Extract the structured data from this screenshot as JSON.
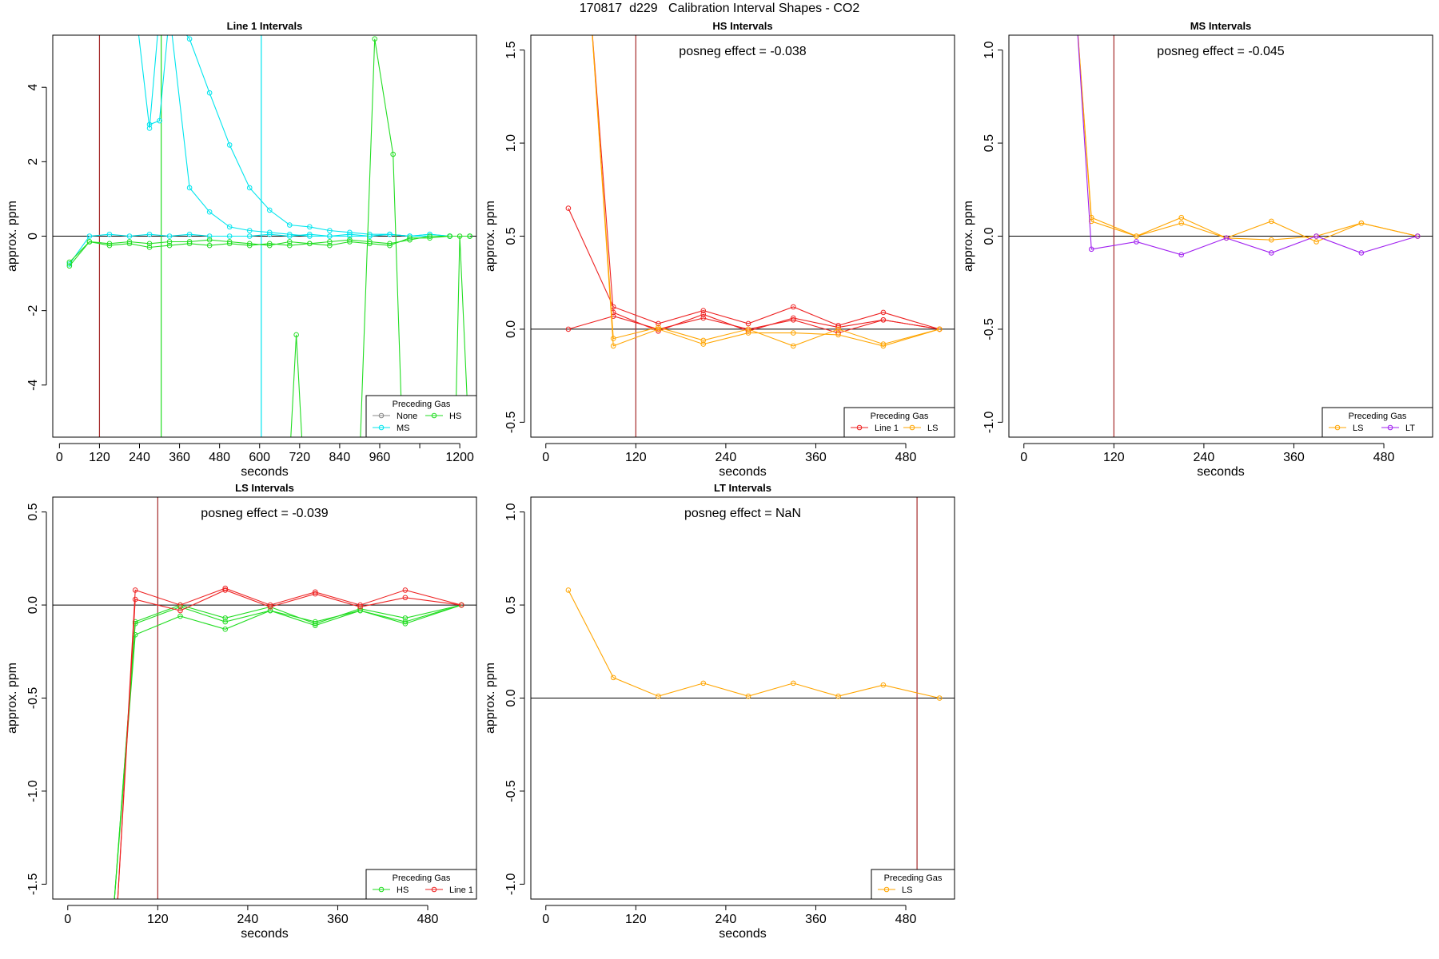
{
  "figure_title": "170817  d229   Calibration Interval Shapes - CO2",
  "ylabel": "approx. ppm",
  "xlabel": "seconds",
  "legend_title": "Preceding Gas",
  "colors": {
    "None": "#888888",
    "MS": "#00e5ee",
    "HS": "#22dd22",
    "Line 1": "#ee2222",
    "LS": "#ffa500",
    "LT": "#a020f0",
    "vline": "#a52a2a",
    "zero": "#000000"
  },
  "chart_data": [
    {
      "type": "line",
      "title": "Line 1 Intervals",
      "annotation": "",
      "xlabel": "seconds",
      "ylabel": "approx. ppm",
      "xlim": [
        -20,
        1250
      ],
      "ylim": [
        -5.4,
        5.4
      ],
      "xticks": [
        0,
        120,
        240,
        360,
        480,
        600,
        720,
        840,
        960,
        1080,
        1200
      ],
      "xtick_labels": [
        "0",
        "120",
        "240",
        "360",
        "480",
        "600",
        "720",
        "840",
        "960",
        "",
        "1200"
      ],
      "yticks": [
        -4,
        -2,
        0,
        2,
        4
      ],
      "vlines": [
        {
          "x": 120,
          "color": "#a52a2a"
        },
        {
          "x": 305,
          "color": "#22dd22"
        },
        {
          "x": 605,
          "color": "#00e5ee"
        }
      ],
      "legend": {
        "position": "bottom-right",
        "entries": [
          "None",
          "HS",
          "MS"
        ],
        "columns": 2
      },
      "series": [
        {
          "name": "MS",
          "color": "#00e5ee",
          "x": [
            30,
            90,
            150,
            210,
            270,
            330,
            390,
            450,
            510,
            570,
            630,
            690,
            750,
            810,
            870,
            930,
            990,
            1050,
            1110,
            1170,
            1230
          ],
          "y": [
            -0.75,
            0.0,
            0.05,
            0.0,
            0.05,
            0.0,
            0.05,
            0.0,
            0.0,
            0.0,
            0.05,
            0.0,
            0.05,
            0.0,
            0.05,
            0.0,
            0.05,
            0.0,
            0.05,
            0.0,
            0.0
          ]
        },
        {
          "name": "MS",
          "color": "#00e5ee",
          "x": [
            270,
            300,
            330,
            390,
            450,
            510,
            570,
            630,
            690,
            750,
            810,
            870,
            930,
            990,
            1050,
            1110,
            1170
          ],
          "y": [
            3.0,
            3.1,
            6.0,
            5.3,
            3.85,
            2.45,
            1.3,
            0.7,
            0.3,
            0.25,
            0.15,
            0.1,
            0.05,
            0.05,
            0.0,
            0.05,
            0.0
          ]
        },
        {
          "name": "MS",
          "color": "#00e5ee",
          "x": [
            230,
            270,
            300
          ],
          "y": [
            6.0,
            2.9,
            6.0
          ]
        },
        {
          "name": "MS",
          "color": "#00e5ee",
          "x": [
            330,
            390,
            450,
            510,
            570,
            630,
            690,
            750,
            810,
            870,
            930,
            990,
            1050,
            1110,
            1170
          ],
          "y": [
            6.0,
            1.3,
            0.65,
            0.25,
            0.15,
            0.1,
            0.05,
            0.0,
            0.0,
            0.0,
            0.0,
            0.05,
            0.0,
            0.0,
            0.0
          ]
        },
        {
          "name": "HS",
          "color": "#22dd22",
          "x": [
            30,
            90,
            150,
            210,
            270,
            330,
            390,
            450,
            510,
            570,
            630,
            690,
            750,
            810,
            870,
            930,
            990,
            1050,
            1110,
            1170,
            1230
          ],
          "y": [
            -0.7,
            -0.15,
            -0.25,
            -0.2,
            -0.3,
            -0.25,
            -0.2,
            -0.25,
            -0.2,
            -0.25,
            -0.2,
            -0.25,
            -0.2,
            -0.25,
            -0.15,
            -0.2,
            -0.25,
            -0.05,
            -0.05,
            0.0,
            0.0
          ]
        },
        {
          "name": "HS",
          "color": "#22dd22",
          "x": [
            30,
            90,
            150,
            210,
            270,
            330,
            390,
            450,
            510,
            570,
            630,
            690,
            750,
            810,
            870,
            930,
            990,
            1050,
            1110,
            1170,
            1230
          ],
          "y": [
            -0.8,
            -0.15,
            -0.2,
            -0.15,
            -0.2,
            -0.15,
            -0.15,
            -0.1,
            -0.15,
            -0.2,
            -0.25,
            -0.15,
            -0.2,
            -0.15,
            -0.1,
            -0.15,
            -0.2,
            -0.1,
            0.0,
            0.0,
            0.0
          ]
        },
        {
          "name": "HS",
          "color": "#22dd22",
          "x": [
            690,
            710,
            730
          ],
          "y": [
            -6.0,
            -2.65,
            -6.0
          ]
        },
        {
          "name": "HS",
          "color": "#22dd22",
          "x": [
            900,
            945,
            1000,
            1030
          ],
          "y": [
            -6.0,
            5.3,
            2.2,
            -6.0
          ]
        },
        {
          "name": "HS",
          "color": "#22dd22",
          "x": [
            1185,
            1200,
            1230
          ],
          "y": [
            -6.0,
            0.0,
            -6.0
          ]
        }
      ]
    },
    {
      "type": "line",
      "title": "HS Intervals",
      "annotation": "posneg effect = -0.038",
      "xlabel": "seconds",
      "ylabel": "approx. ppm",
      "xlim": [
        -20,
        545
      ],
      "ylim": [
        -0.58,
        1.58
      ],
      "xticks": [
        0,
        120,
        240,
        360,
        480
      ],
      "xtick_labels": [
        "0",
        "120",
        "240",
        "360",
        "480"
      ],
      "yticks": [
        -0.5,
        0.0,
        0.5,
        1.0,
        1.5
      ],
      "vlines": [
        {
          "x": 120,
          "color": "#a52a2a"
        }
      ],
      "legend": {
        "position": "bottom-right",
        "entries": [
          "Line 1",
          "LS"
        ],
        "columns": 2
      },
      "series": [
        {
          "name": "Line 1",
          "color": "#ee2222",
          "x": [
            30,
            90,
            150,
            210,
            270,
            330,
            390,
            450,
            525
          ],
          "y": [
            0.65,
            0.12,
            0.03,
            0.1,
            0.03,
            0.12,
            0.02,
            0.09,
            0.0
          ]
        },
        {
          "name": "Line 1",
          "color": "#ee2222",
          "x": [
            30,
            90,
            150,
            210,
            270,
            330,
            390,
            450,
            525
          ],
          "y": [
            0.0,
            0.07,
            0.0,
            0.06,
            0.0,
            0.05,
            -0.02,
            0.05,
            0.0
          ]
        },
        {
          "name": "Line 1",
          "color": "#ee2222",
          "x": [
            60,
            90,
            150,
            210,
            270,
            330,
            390,
            450,
            525
          ],
          "y": [
            1.7,
            0.09,
            -0.01,
            0.08,
            -0.01,
            0.06,
            0.01,
            0.05,
            0.0
          ]
        },
        {
          "name": "LS",
          "color": "#ffa500",
          "x": [
            60,
            90,
            150,
            210,
            270,
            330,
            390,
            450,
            525
          ],
          "y": [
            1.7,
            -0.05,
            0.01,
            -0.06,
            0.0,
            -0.09,
            0.0,
            -0.08,
            0.0
          ]
        },
        {
          "name": "LS",
          "color": "#ffa500",
          "x": [
            60,
            90,
            150,
            210,
            270,
            330,
            390,
            450,
            525
          ],
          "y": [
            1.7,
            -0.09,
            0.0,
            -0.08,
            -0.02,
            -0.02,
            -0.03,
            -0.09,
            0.0
          ]
        }
      ]
    },
    {
      "type": "line",
      "title": "MS Intervals",
      "annotation": "posneg effect = -0.045",
      "xlabel": "seconds",
      "ylabel": "approx. ppm",
      "xlim": [
        -20,
        545
      ],
      "ylim": [
        -1.08,
        1.08
      ],
      "xticks": [
        0,
        120,
        240,
        360,
        480
      ],
      "xtick_labels": [
        "0",
        "120",
        "240",
        "360",
        "480"
      ],
      "yticks": [
        -1.0,
        -0.5,
        0.0,
        0.5,
        1.0
      ],
      "vlines": [
        {
          "x": 120,
          "color": "#a52a2a"
        }
      ],
      "legend": {
        "position": "bottom-right",
        "entries": [
          "LS",
          "LT"
        ],
        "columns": 2
      },
      "series": [
        {
          "name": "LS",
          "color": "#ffa500",
          "x": [
            70,
            90,
            150,
            210,
            270,
            330,
            390,
            450,
            525
          ],
          "y": [
            1.2,
            0.1,
            0.0,
            0.1,
            -0.01,
            0.08,
            -0.03,
            0.07,
            0.0
          ]
        },
        {
          "name": "LS",
          "color": "#ffa500",
          "x": [
            70,
            90,
            150,
            210,
            270,
            330,
            390,
            450,
            525
          ],
          "y": [
            1.2,
            0.08,
            0.0,
            0.07,
            -0.01,
            -0.02,
            0.0,
            0.07,
            0.0
          ]
        },
        {
          "name": "LT",
          "color": "#a020f0",
          "x": [
            70,
            90,
            150,
            210,
            270,
            330,
            390,
            450,
            525
          ],
          "y": [
            1.2,
            -0.07,
            -0.03,
            -0.1,
            -0.01,
            -0.09,
            0.0,
            -0.09,
            0.0
          ]
        }
      ]
    },
    {
      "type": "line",
      "title": "LS Intervals",
      "annotation": "posneg effect = -0.039",
      "xlabel": "seconds",
      "ylabel": "approx. ppm",
      "xlim": [
        -20,
        545
      ],
      "ylim": [
        -1.58,
        0.58
      ],
      "xticks": [
        0,
        120,
        240,
        360,
        480
      ],
      "xtick_labels": [
        "0",
        "120",
        "240",
        "360",
        "480"
      ],
      "yticks": [
        -1.5,
        -1.0,
        -0.5,
        0.0,
        0.5
      ],
      "vlines": [
        {
          "x": 120,
          "color": "#a52a2a"
        }
      ],
      "legend": {
        "position": "bottom-right",
        "entries": [
          "HS",
          "Line 1"
        ],
        "columns": 2
      },
      "series": [
        {
          "name": "HS",
          "color": "#22dd22",
          "x": [
            60,
            90,
            150,
            210,
            270,
            330,
            390,
            450,
            525
          ],
          "y": [
            -1.7,
            -0.09,
            0.0,
            -0.07,
            -0.01,
            -0.1,
            -0.02,
            -0.07,
            0.0
          ]
        },
        {
          "name": "HS",
          "color": "#22dd22",
          "x": [
            60,
            90,
            150,
            210,
            270,
            330,
            390,
            450,
            525
          ],
          "y": [
            -1.7,
            -0.1,
            -0.01,
            -0.09,
            -0.03,
            -0.09,
            -0.03,
            -0.1,
            0.0
          ]
        },
        {
          "name": "HS",
          "color": "#22dd22",
          "x": [
            60,
            90,
            150,
            210,
            270,
            330,
            390,
            450,
            525
          ],
          "y": [
            -1.7,
            -0.16,
            -0.06,
            -0.13,
            -0.03,
            -0.11,
            -0.03,
            -0.09,
            0.0
          ]
        },
        {
          "name": "Line 1",
          "color": "#ee2222",
          "x": [
            65,
            90,
            150,
            210,
            270,
            330,
            390,
            450,
            525
          ],
          "y": [
            -1.7,
            0.08,
            0.0,
            0.09,
            0.0,
            0.07,
            0.0,
            0.08,
            0.0
          ]
        },
        {
          "name": "Line 1",
          "color": "#ee2222",
          "x": [
            65,
            90,
            150,
            210,
            270,
            330,
            390,
            450,
            525
          ],
          "y": [
            -1.7,
            0.03,
            -0.03,
            0.08,
            -0.01,
            0.06,
            -0.01,
            0.04,
            0.0
          ]
        }
      ]
    },
    {
      "type": "line",
      "title": "LT Intervals",
      "annotation": "posneg effect = NaN",
      "xlabel": "seconds",
      "ylabel": "approx. ppm",
      "xlim": [
        -20,
        545
      ],
      "ylim": [
        -1.08,
        1.08
      ],
      "xticks": [
        0,
        120,
        240,
        360,
        480
      ],
      "xtick_labels": [
        "0",
        "120",
        "240",
        "360",
        "480"
      ],
      "yticks": [
        -1.0,
        -0.5,
        0.0,
        0.5,
        1.0
      ],
      "vlines": [
        {
          "x": 495,
          "color": "#a52a2a"
        }
      ],
      "legend": {
        "position": "bottom-right",
        "entries": [
          "LS"
        ],
        "columns": 1
      },
      "series": [
        {
          "name": "LS",
          "color": "#ffa500",
          "x": [
            30,
            90,
            150,
            210,
            270,
            330,
            390,
            450,
            525
          ],
          "y": [
            0.58,
            0.11,
            0.01,
            0.08,
            0.01,
            0.08,
            0.01,
            0.07,
            0.0
          ]
        }
      ]
    }
  ]
}
